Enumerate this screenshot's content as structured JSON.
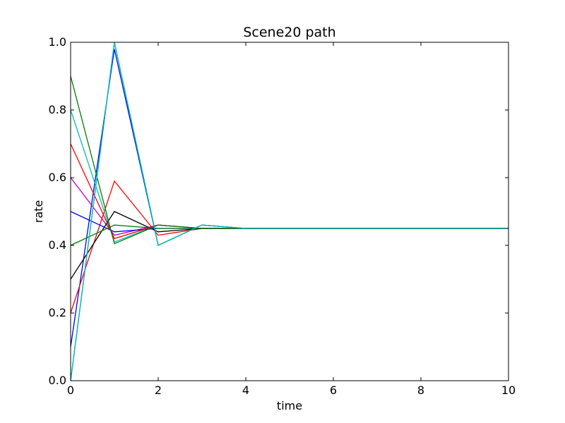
{
  "chart_data": {
    "type": "line",
    "title": "Scene20 path",
    "xlabel": "time",
    "ylabel": "rate",
    "xlim": [
      0,
      10
    ],
    "ylim": [
      0.0,
      1.0
    ],
    "grid": false,
    "x_ticks": [
      0,
      2,
      4,
      6,
      8,
      10
    ],
    "x_tick_labels": [
      "0",
      "2",
      "4",
      "6",
      "8",
      "10"
    ],
    "y_ticks": [
      0.0,
      0.2,
      0.4,
      0.6,
      0.8,
      1.0
    ],
    "y_tick_labels": [
      "0.0",
      "0.2",
      "0.4",
      "0.6",
      "0.8",
      "1.0"
    ],
    "x": [
      0,
      1,
      2,
      3,
      4,
      5,
      6,
      7,
      8,
      9,
      10
    ],
    "series": [
      {
        "color": "#0000ff",
        "values": [
          0.1,
          0.98,
          0.4,
          0.46,
          0.45,
          0.45,
          0.45,
          0.45,
          0.45,
          0.45,
          0.45
        ]
      },
      {
        "color": "#008000",
        "values": [
          0.0,
          1.0,
          0.4,
          0.46,
          0.45,
          0.45,
          0.45,
          0.45,
          0.45,
          0.45,
          0.45
        ]
      },
      {
        "color": "#ff0000",
        "values": [
          0.2,
          0.59,
          0.43,
          0.45,
          0.45,
          0.45,
          0.45,
          0.45,
          0.45,
          0.45,
          0.45
        ]
      },
      {
        "color": "#00bfbf",
        "values": [
          0.8,
          0.41,
          0.46,
          0.45,
          0.45,
          0.45,
          0.45,
          0.45,
          0.45,
          0.45,
          0.45
        ]
      },
      {
        "color": "#bf00bf",
        "values": [
          0.6,
          0.43,
          0.46,
          0.45,
          0.45,
          0.45,
          0.45,
          0.45,
          0.45,
          0.45,
          0.45
        ]
      },
      {
        "color": "#000000",
        "values": [
          0.3,
          0.5,
          0.44,
          0.45,
          0.45,
          0.45,
          0.45,
          0.45,
          0.45,
          0.45,
          0.45
        ]
      },
      {
        "color": "#0000ff",
        "values": [
          0.5,
          0.44,
          0.45,
          0.45,
          0.45,
          0.45,
          0.45,
          0.45,
          0.45,
          0.45,
          0.45
        ]
      },
      {
        "color": "#008000",
        "values": [
          0.4,
          0.46,
          0.45,
          0.45,
          0.45,
          0.45,
          0.45,
          0.45,
          0.45,
          0.45,
          0.45
        ]
      },
      {
        "color": "#ff0000",
        "values": [
          0.7,
          0.42,
          0.46,
          0.45,
          0.45,
          0.45,
          0.45,
          0.45,
          0.45,
          0.45,
          0.45
        ]
      },
      {
        "color": "#008000",
        "values": [
          0.9,
          0.405,
          0.46,
          0.45,
          0.45,
          0.45,
          0.45,
          0.45,
          0.45,
          0.45,
          0.45
        ]
      },
      {
        "color": "#00bfbf",
        "values": [
          0.0,
          1.0,
          0.4,
          0.46,
          0.45,
          0.45,
          0.45,
          0.45,
          0.45,
          0.45,
          0.45
        ]
      }
    ]
  }
}
